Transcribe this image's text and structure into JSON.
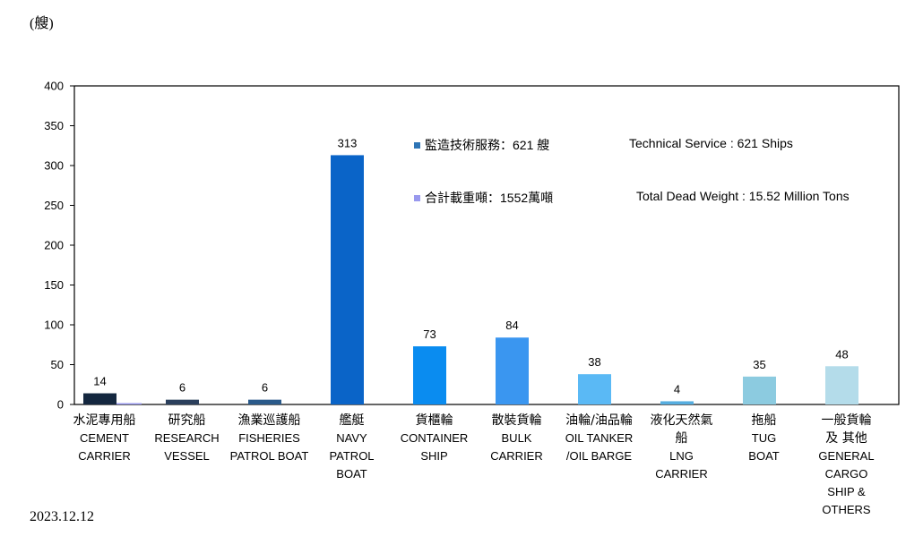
{
  "header": {
    "unit_label": "(艘)"
  },
  "footer": {
    "date": "2023.12.12"
  },
  "colors": {
    "legend_service": "#2e75b6",
    "legend_weight": "#9999ee"
  },
  "legend": {
    "service_zh": "監造技術服務：621 艘",
    "service_en": "Technical Service : 621 Ships",
    "weight_zh": "合計載重噸：1552萬噸",
    "weight_en": "Total Dead Weight : 15.52 Million Tons"
  },
  "chart_data": {
    "type": "bar",
    "ylim": [
      0,
      400
    ],
    "yticks": [
      0,
      50,
      100,
      150,
      200,
      250,
      300,
      350,
      400
    ],
    "grid": false,
    "categories": [
      {
        "zh": "水泥專用船",
        "en": [
          "CEMENT",
          "CARRIER"
        ],
        "value": 14,
        "color": "#14273f"
      },
      {
        "zh": "研究船",
        "en": [
          "RESEARCH",
          "VESSEL"
        ],
        "value": 6,
        "color": "#2b3f5c"
      },
      {
        "zh": "漁業巡護船",
        "en": [
          "FISHERIES",
          "PATROL BOAT"
        ],
        "value": 6,
        "color": "#2a5a8a"
      },
      {
        "zh": "艦艇",
        "en": [
          "NAVY",
          "PATROL",
          "BOAT"
        ],
        "value": 313,
        "color": "#0a64c8"
      },
      {
        "zh": "貨櫃輪",
        "en": [
          "CONTAINER",
          "SHIP"
        ],
        "value": 73,
        "color": "#0a8cf0"
      },
      {
        "zh": "散裝貨輪",
        "en": [
          "BULK",
          "CARRIER"
        ],
        "value": 84,
        "color": "#3a96f0"
      },
      {
        "zh": "油輪/油品輪",
        "en": [
          "OIL TANKER",
          "/OIL BARGE"
        ],
        "value": 38,
        "color": "#5ab9f5"
      },
      {
        "zh": "液化天然氣船",
        "en": [
          "LNG",
          "CARRIER"
        ],
        "value": 4,
        "color": "#56aee0"
      },
      {
        "zh": "拖船",
        "en": [
          "TUG",
          "BOAT"
        ],
        "value": 35,
        "color": "#8ccbe0"
      },
      {
        "zh": "一般貨輪及 其他",
        "en": [
          "GENERAL",
          "CARGO",
          "SHIP &",
          "OTHERS"
        ],
        "value": 48,
        "color": "#b4dcea"
      }
    ],
    "category_zh_lines": [
      [
        "水泥專用船"
      ],
      [
        "研究船"
      ],
      [
        "漁業巡護船"
      ],
      [
        "艦艇"
      ],
      [
        "貨櫃輪"
      ],
      [
        "散裝貨輪"
      ],
      [
        "油輪/油品輪"
      ],
      [
        "液化天然氣",
        "船"
      ],
      [
        "拖船"
      ],
      [
        "一般貨輪",
        "及 其他"
      ]
    ]
  }
}
